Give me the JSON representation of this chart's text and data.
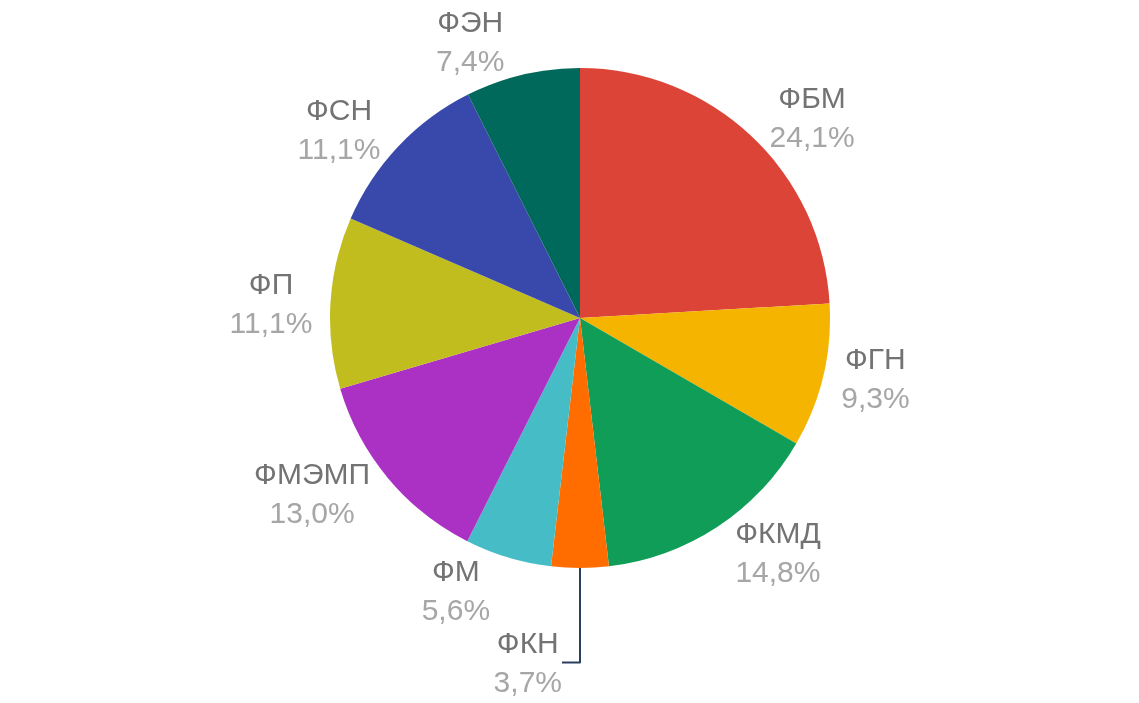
{
  "chart_data": {
    "type": "pie",
    "categories": [
      "ФБМ",
      "ФГН",
      "ФКМД",
      "ФКН",
      "ФМ",
      "ФМЭМП",
      "ФП",
      "ФСН",
      "ФЭН"
    ],
    "values": [
      24.1,
      9.3,
      14.8,
      3.7,
      5.6,
      13.0,
      11.1,
      11.1,
      7.4
    ],
    "value_labels": [
      "24,1%",
      "9,3%",
      "14,8%",
      "3,7%",
      "5,6%",
      "13,0%",
      "11,1%",
      "11,1%",
      "7,4%"
    ],
    "colors": [
      "#db4437",
      "#f4b400",
      "#0f9d58",
      "#ff6d00",
      "#46bdc6",
      "#ab30c4",
      "#c2bd1f",
      "#3949ab",
      "#00695c"
    ],
    "legend": false
  }
}
